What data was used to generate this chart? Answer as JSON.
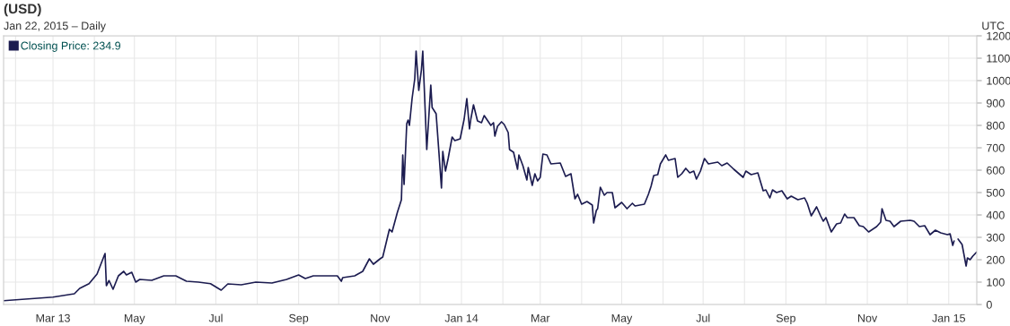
{
  "chart_data": {
    "type": "line",
    "title": "(USD)",
    "subtitle": "Jan 22, 2015 – Daily",
    "annotations": [
      "UTC"
    ],
    "x": [
      "2013-01-23",
      "2013-03-01",
      "2013-03-17",
      "2013-03-21",
      "2013-03-28",
      "2013-04-03",
      "2013-04-09",
      "2013-04-10",
      "2013-04-12",
      "2013-04-15",
      "2013-04-19",
      "2013-04-23",
      "2013-04-25",
      "2013-04-29",
      "2013-05-02",
      "2013-05-05",
      "2013-05-14",
      "2013-05-23",
      "2013-06-01",
      "2013-06-09",
      "2013-06-18",
      "2013-06-27",
      "2013-07-05",
      "2013-07-10",
      "2013-07-20",
      "2013-07-31",
      "2013-08-12",
      "2013-08-23",
      "2013-09-01",
      "2013-09-06",
      "2013-09-12",
      "2013-09-30",
      "2013-10-03",
      "2013-10-04",
      "2013-10-13",
      "2013-10-19",
      "2013-10-24",
      "2013-10-27",
      "2013-11-01",
      "2013-11-03",
      "2013-11-08",
      "2013-11-10",
      "2013-11-14",
      "2013-11-17",
      "2013-11-18",
      "2013-11-19",
      "2013-11-21",
      "2013-11-22",
      "2013-11-23",
      "2013-11-25",
      "2013-11-27",
      "2013-11-28",
      "2013-11-30",
      "2013-12-02",
      "2013-12-03",
      "2013-12-06",
      "2013-12-09",
      "2013-12-10",
      "2013-12-13",
      "2013-12-15",
      "2013-12-17",
      "2013-12-18",
      "2013-12-20",
      "2013-12-22",
      "2013-12-25",
      "2013-12-27",
      "2013-12-31",
      "2014-01-03",
      "2014-01-05",
      "2014-01-07",
      "2014-01-08",
      "2014-01-10",
      "2014-01-13",
      "2014-01-16",
      "2014-01-18",
      "2014-01-23",
      "2014-01-25",
      "2014-01-26",
      "2014-01-28",
      "2014-01-31",
      "2014-02-02",
      "2014-02-05",
      "2014-02-06",
      "2014-02-09",
      "2014-02-12",
      "2014-02-13",
      "2014-02-16",
      "2014-02-19",
      "2014-02-20",
      "2014-02-23",
      "2014-02-25",
      "2014-02-27",
      "2014-03-01",
      "2014-03-03",
      "2014-03-06",
      "2014-03-09",
      "2014-03-16",
      "2014-03-20",
      "2014-03-24",
      "2014-03-27",
      "2014-03-29",
      "2014-04-01",
      "2014-04-05",
      "2014-04-09",
      "2014-04-10",
      "2014-04-12",
      "2014-04-13",
      "2014-04-15",
      "2014-04-18",
      "2014-04-20",
      "2014-04-24",
      "2014-04-26",
      "2014-05-01",
      "2014-05-05",
      "2014-05-09",
      "2014-05-11",
      "2014-05-18",
      "2014-05-21",
      "2014-05-23",
      "2014-05-25",
      "2014-05-28",
      "2014-05-30",
      "2014-06-03",
      "2014-06-05",
      "2014-06-10",
      "2014-06-12",
      "2014-06-15",
      "2014-06-18",
      "2014-06-21",
      "2014-06-24",
      "2014-06-26",
      "2014-06-29",
      "2014-07-02",
      "2014-07-05",
      "2014-07-12",
      "2014-07-15",
      "2014-07-19",
      "2014-07-24",
      "2014-07-31",
      "2014-08-02",
      "2014-08-06",
      "2014-08-11",
      "2014-08-15",
      "2014-08-17",
      "2014-08-20",
      "2014-08-22",
      "2014-08-25",
      "2014-08-29",
      "2014-09-02",
      "2014-09-05",
      "2014-09-10",
      "2014-09-15",
      "2014-09-17",
      "2014-09-20",
      "2014-09-24",
      "2014-09-27",
      "2014-09-29",
      "2014-10-01",
      "2014-10-05",
      "2014-10-09",
      "2014-10-12",
      "2014-10-15",
      "2014-10-17",
      "2014-10-22",
      "2014-10-26",
      "2014-10-29",
      "2014-11-02",
      "2014-11-08",
      "2014-11-11",
      "2014-11-12",
      "2014-11-15",
      "2014-11-18",
      "2014-11-21",
      "2014-11-26",
      "2014-12-03",
      "2014-12-06",
      "2014-12-10",
      "2014-12-14",
      "2014-12-18",
      "2014-12-22",
      "2014-12-26",
      "2014-12-31",
      "2015-01-02",
      "2015-01-04",
      "2015-01-05",
      "2015-01-06",
      "2015-01-08",
      "2015-01-11",
      "2015-01-14",
      "2015-01-15",
      "2015-01-17",
      "2015-01-19",
      "2015-01-22"
    ],
    "series": [
      {
        "name": "Closing Price: 234.9",
        "color": "#1c1c50",
        "values": [
          17,
          33,
          48,
          72,
          93,
          136,
          228,
          84,
          107,
          68,
          128,
          148,
          132,
          144,
          100,
          112,
          108,
          128,
          128,
          104,
          100,
          93,
          64,
          92,
          88,
          100,
          96,
          112,
          132,
          116,
          128,
          128,
          104,
          120,
          128,
          148,
          204,
          180,
          204,
          212,
          336,
          324,
          412,
          468,
          668,
          536,
          808,
          824,
          800,
          920,
          1008,
          1132,
          956,
          1048,
          1132,
          692,
          980,
          880,
          852,
          688,
          520,
          684,
          596,
          652,
          748,
          732,
          740,
          828,
          920,
          784,
          828,
          892,
          820,
          812,
          844,
          800,
          812,
          752,
          796,
          816,
          804,
          768,
          692,
          680,
          604,
          668,
          620,
          556,
          612,
          532,
          584,
          552,
          568,
          672,
          668,
          628,
          632,
          572,
          584,
          472,
          492,
          448,
          460,
          444,
          364,
          420,
          428,
          524,
          488,
          500,
          500,
          432,
          456,
          428,
          452,
          440,
          448,
          492,
          528,
          576,
          580,
          628,
          668,
          644,
          652,
          568,
          584,
          608,
          588,
          596,
          560,
          596,
          652,
          628,
          636,
          620,
          632,
          604,
          568,
          596,
          580,
          588,
          508,
          512,
          476,
          512,
          500,
          508,
          472,
          484,
          468,
          476,
          452,
          396,
          436,
          396,
          372,
          388,
          324,
          360,
          364,
          404,
          388,
          388,
          352,
          348,
          324,
          348,
          368,
          428,
          376,
          372,
          348,
          372,
          376,
          372,
          348,
          352,
          312,
          332,
          320,
          312,
          316,
          264,
          284,
          null,
          292,
          268,
          172,
          208,
          200,
          216,
          234.9
        ]
      }
    ],
    "xlim": [
      "2013-01-23",
      "2015-01-22"
    ],
    "xticks": [
      {
        "value": "2013-02-01",
        "label": null
      },
      {
        "value": "2013-03-01",
        "label": "Mar 13"
      },
      {
        "value": "2013-04-01",
        "label": null
      },
      {
        "value": "2013-05-01",
        "label": "May"
      },
      {
        "value": "2013-06-01",
        "label": null
      },
      {
        "value": "2013-07-01",
        "label": "Jul"
      },
      {
        "value": "2013-08-01",
        "label": null
      },
      {
        "value": "2013-09-01",
        "label": "Sep"
      },
      {
        "value": "2013-10-01",
        "label": null
      },
      {
        "value": "2013-11-01",
        "label": "Nov"
      },
      {
        "value": "2013-12-01",
        "label": null
      },
      {
        "value": "2014-01-01",
        "label": "Jan 14"
      },
      {
        "value": "2014-02-01",
        "label": null
      },
      {
        "value": "2014-03-01",
        "label": "Mar"
      },
      {
        "value": "2014-04-01",
        "label": null
      },
      {
        "value": "2014-05-01",
        "label": "May"
      },
      {
        "value": "2014-06-01",
        "label": null
      },
      {
        "value": "2014-07-01",
        "label": "Jul"
      },
      {
        "value": "2014-08-01",
        "label": null
      },
      {
        "value": "2014-09-01",
        "label": "Sep"
      },
      {
        "value": "2014-10-01",
        "label": null
      },
      {
        "value": "2014-11-01",
        "label": "Nov"
      },
      {
        "value": "2014-12-01",
        "label": null
      },
      {
        "value": "2015-01-01",
        "label": "Jan 15"
      }
    ],
    "ylim": [
      0,
      1200
    ],
    "yticks": [
      0,
      100,
      200,
      300,
      400,
      500,
      600,
      700,
      800,
      900,
      1000,
      1100,
      1200
    ],
    "grid": true,
    "legend": "top left",
    "marker": "none",
    "line_style": "solid"
  }
}
